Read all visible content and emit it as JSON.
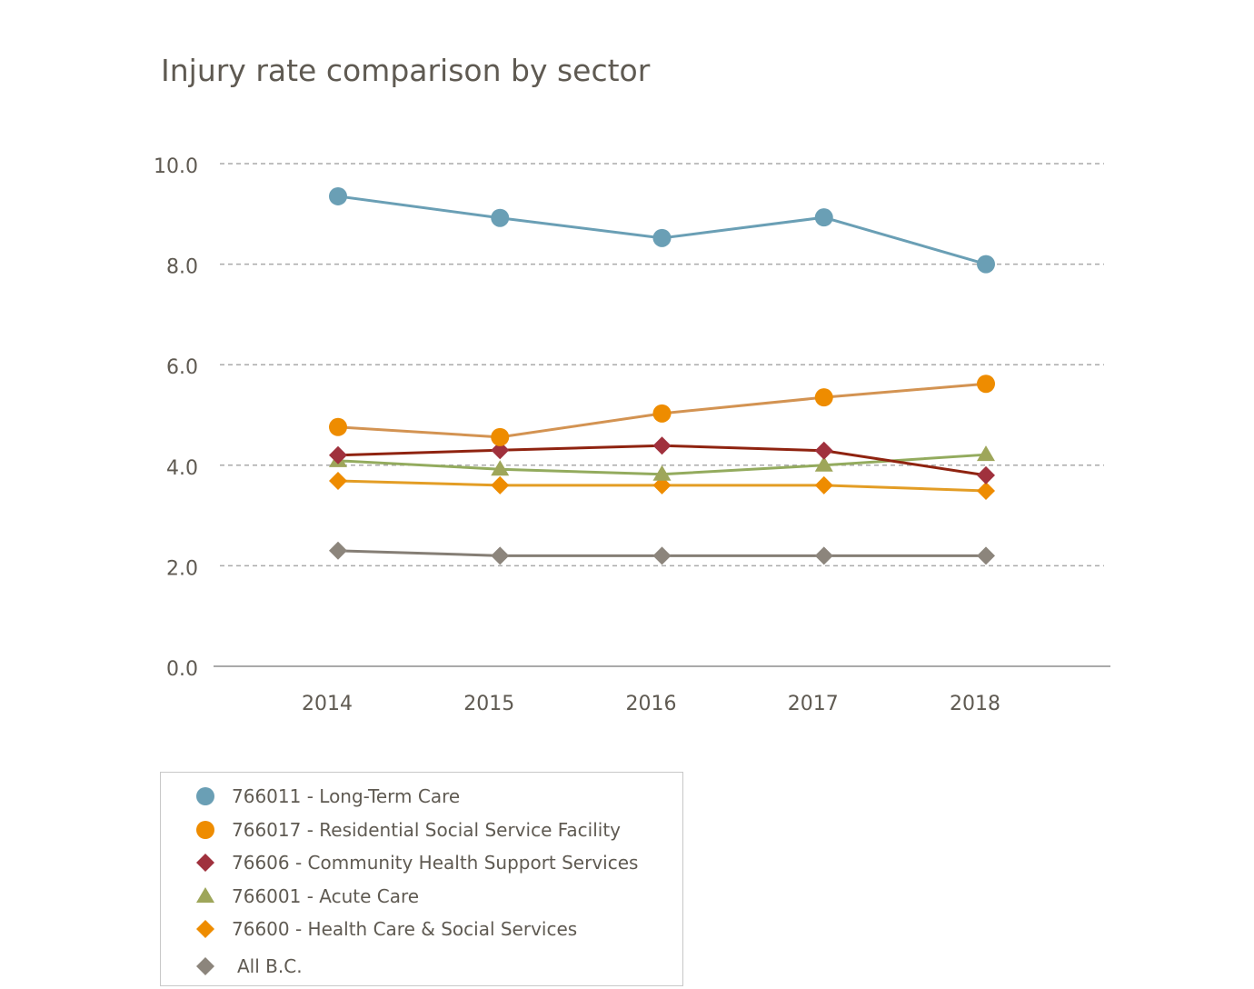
{
  "chart_data": {
    "type": "line",
    "title": "Injury rate comparison by sector",
    "xlabel": "",
    "ylabel": "",
    "categories": [
      "2014",
      "2015",
      "2016",
      "2017",
      "2018"
    ],
    "ylim": [
      0,
      10
    ],
    "yticks": [
      "0.0",
      "2.0",
      "4.0",
      "6.0",
      "8.0",
      "10.0"
    ],
    "grid": true,
    "legend_position": "bottom-left",
    "series": [
      {
        "name": "766011 - Long-Term Care",
        "values": [
          9.35,
          8.92,
          8.52,
          8.93,
          8.0
        ],
        "marker": "circle",
        "marker_color": "#6a9fb5",
        "line_color": "#6a9fb5"
      },
      {
        "name": "766017 - Residential Social Service Facility",
        "values": [
          4.76,
          4.56,
          5.03,
          5.35,
          5.62
        ],
        "marker": "circle",
        "marker_color": "#ee8c00",
        "line_color": "#d39352"
      },
      {
        "name": "76606 - Community Health Support Services",
        "values": [
          4.2,
          4.3,
          4.39,
          4.29,
          3.8
        ],
        "marker": "diamond",
        "marker_color": "#a0313d",
        "line_color": "#8f2310"
      },
      {
        "name": "766001 - Acute Care",
        "values": [
          4.09,
          3.92,
          3.82,
          4.0,
          4.21
        ],
        "marker": "triangle",
        "marker_color": "#9ea65a",
        "line_color": "#93ab5e"
      },
      {
        "name": "76600 - Health Care & Social Services",
        "values": [
          3.69,
          3.6,
          3.6,
          3.6,
          3.49
        ],
        "marker": "diamond",
        "marker_color": "#ee8c00",
        "line_color": "#e39d25"
      },
      {
        "name": "All B.C.",
        "values": [
          2.3,
          2.2,
          2.2,
          2.2,
          2.2
        ],
        "marker": "diamond",
        "marker_color": "#8c857c",
        "line_color": "#857e75"
      }
    ]
  }
}
